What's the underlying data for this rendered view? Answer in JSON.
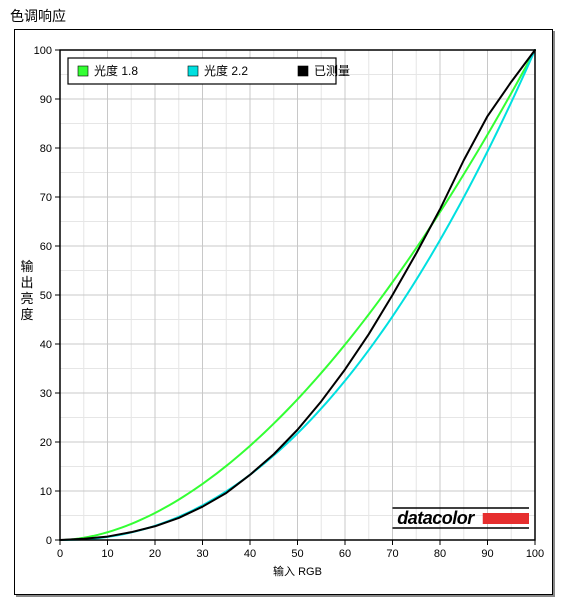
{
  "title": "色调响应",
  "chart": {
    "type": "line",
    "xlabel": "输入 RGB",
    "ylabel": "输出亮度",
    "xlim": [
      0,
      100
    ],
    "ylim": [
      0,
      100
    ],
    "xtick_step": 10,
    "ytick_step": 10,
    "grid_minor_step": 5,
    "background_color": "#ffffff",
    "grid_minor_color": "#e6e6e6",
    "grid_major_color": "#c8c8c8",
    "border_color": "#000000",
    "legend": {
      "position": "top-left",
      "items": [
        {
          "swatch_color": "#33ff33",
          "label": "光度 1.8"
        },
        {
          "swatch_color": "#00e0e0",
          "label": "光度 2.2"
        },
        {
          "swatch_color": "#000000",
          "label": "已测量"
        }
      ],
      "border_color": "#000000",
      "font_size": 12
    },
    "series": [
      {
        "name": "gamma18",
        "label": "光度 1.8",
        "color": "#33ff33",
        "line_width": 2,
        "gamma": 1.8
      },
      {
        "name": "gamma22",
        "label": "光度 2.2",
        "color": "#00e0e0",
        "line_width": 2,
        "gamma": 2.2
      },
      {
        "name": "measured",
        "label": "已测量",
        "color": "#000000",
        "line_width": 2,
        "data": [
          [
            0,
            0
          ],
          [
            5,
            0.25
          ],
          [
            10,
            0.7
          ],
          [
            15,
            1.6
          ],
          [
            20,
            2.8
          ],
          [
            25,
            4.5
          ],
          [
            30,
            6.8
          ],
          [
            35,
            9.6
          ],
          [
            40,
            13.3
          ],
          [
            45,
            17.5
          ],
          [
            50,
            22.5
          ],
          [
            55,
            28.3
          ],
          [
            60,
            34.8
          ],
          [
            65,
            42.0
          ],
          [
            70,
            50.0
          ],
          [
            75,
            58.5
          ],
          [
            80,
            67.5
          ],
          [
            85,
            77.5
          ],
          [
            90,
            86.5
          ],
          [
            95,
            93.5
          ],
          [
            100,
            100
          ]
        ]
      }
    ],
    "watermark": {
      "text": "datacolor",
      "text_color": "#000000",
      "bar_color": "#e62e2e"
    },
    "label_fontsize": 13,
    "tick_fontsize": 11
  }
}
